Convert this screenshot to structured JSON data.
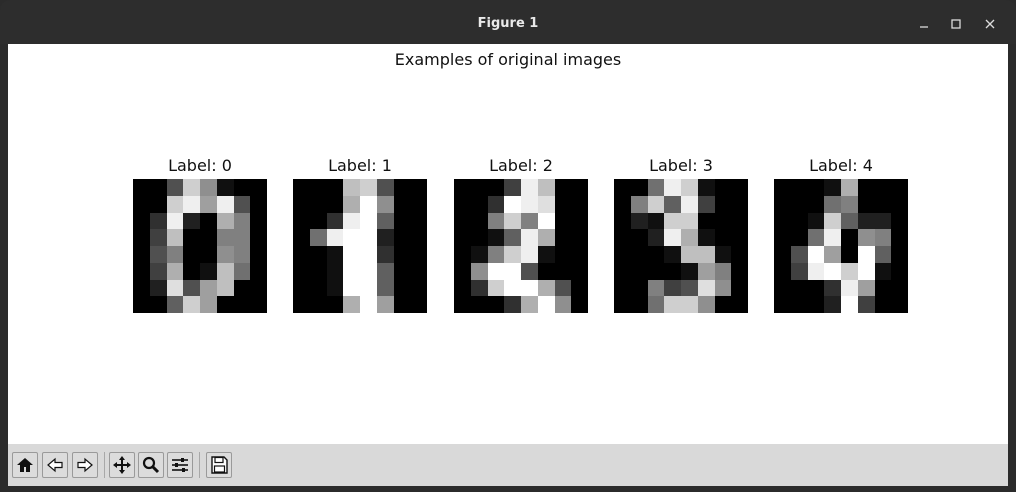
{
  "window": {
    "title": "Figure 1",
    "controls": [
      "minimize-icon",
      "maximize-icon",
      "close-icon"
    ]
  },
  "figure": {
    "suptitle": "Examples of original images",
    "panels": [
      {
        "label": "Label: 0",
        "pixels": [
          [
            0,
            0,
            5,
            13,
            9,
            1,
            0,
            0
          ],
          [
            0,
            0,
            13,
            15,
            10,
            15,
            5,
            0
          ],
          [
            0,
            3,
            15,
            2,
            0,
            11,
            8,
            0
          ],
          [
            0,
            4,
            12,
            0,
            0,
            8,
            8,
            0
          ],
          [
            0,
            5,
            8,
            0,
            0,
            9,
            8,
            0
          ],
          [
            0,
            4,
            11,
            0,
            1,
            12,
            7,
            0
          ],
          [
            0,
            2,
            14,
            5,
            10,
            12,
            0,
            0
          ],
          [
            0,
            0,
            6,
            13,
            10,
            0,
            0,
            0
          ]
        ]
      },
      {
        "label": "Label: 1",
        "pixels": [
          [
            0,
            0,
            0,
            12,
            13,
            5,
            0,
            0
          ],
          [
            0,
            0,
            0,
            11,
            16,
            9,
            0,
            0
          ],
          [
            0,
            0,
            3,
            15,
            16,
            6,
            0,
            0
          ],
          [
            0,
            7,
            15,
            16,
            16,
            2,
            0,
            0
          ],
          [
            0,
            0,
            1,
            16,
            16,
            3,
            0,
            0
          ],
          [
            0,
            0,
            1,
            16,
            16,
            6,
            0,
            0
          ],
          [
            0,
            0,
            1,
            16,
            16,
            6,
            0,
            0
          ],
          [
            0,
            0,
            0,
            11,
            16,
            10,
            0,
            0
          ]
        ]
      },
      {
        "label": "Label: 2",
        "pixels": [
          [
            0,
            0,
            0,
            4,
            15,
            12,
            0,
            0
          ],
          [
            0,
            0,
            3,
            16,
            15,
            14,
            0,
            0
          ],
          [
            0,
            0,
            8,
            13,
            8,
            16,
            0,
            0
          ],
          [
            0,
            0,
            1,
            6,
            15,
            11,
            0,
            0
          ],
          [
            0,
            1,
            8,
            13,
            15,
            1,
            0,
            0
          ],
          [
            0,
            9,
            16,
            16,
            5,
            0,
            0,
            0
          ],
          [
            0,
            3,
            13,
            16,
            16,
            11,
            5,
            0
          ],
          [
            0,
            0,
            0,
            3,
            11,
            16,
            9,
            0
          ]
        ]
      },
      {
        "label": "Label: 3",
        "pixels": [
          [
            0,
            0,
            7,
            15,
            13,
            1,
            0,
            0
          ],
          [
            0,
            8,
            13,
            6,
            15,
            4,
            0,
            0
          ],
          [
            0,
            2,
            1,
            13,
            13,
            0,
            0,
            0
          ],
          [
            0,
            0,
            2,
            15,
            11,
            1,
            0,
            0
          ],
          [
            0,
            0,
            0,
            1,
            12,
            12,
            1,
            0
          ],
          [
            0,
            0,
            0,
            0,
            1,
            10,
            8,
            0
          ],
          [
            0,
            0,
            8,
            4,
            5,
            14,
            9,
            0
          ],
          [
            0,
            0,
            7,
            13,
            13,
            9,
            0,
            0
          ]
        ]
      },
      {
        "label": "Label: 4",
        "pixels": [
          [
            0,
            0,
            0,
            1,
            11,
            0,
            0,
            0
          ],
          [
            0,
            0,
            0,
            7,
            8,
            0,
            0,
            0
          ],
          [
            0,
            0,
            1,
            13,
            6,
            2,
            2,
            0
          ],
          [
            0,
            0,
            7,
            15,
            0,
            9,
            8,
            0
          ],
          [
            0,
            5,
            16,
            10,
            0,
            16,
            6,
            0
          ],
          [
            0,
            4,
            15,
            16,
            13,
            16,
            1,
            0
          ],
          [
            0,
            0,
            0,
            3,
            15,
            10,
            0,
            0
          ],
          [
            0,
            0,
            0,
            2,
            16,
            4,
            0,
            0
          ]
        ]
      }
    ]
  },
  "toolbar": {
    "buttons": [
      {
        "name": "home-button",
        "icon": "home-icon"
      },
      {
        "name": "back-button",
        "icon": "back-arrow-icon"
      },
      {
        "name": "forward-button",
        "icon": "forward-arrow-icon"
      },
      {
        "name": "pan-button",
        "icon": "move-arrows-icon"
      },
      {
        "name": "zoom-button",
        "icon": "magnifier-icon"
      },
      {
        "name": "configure-subplots-button",
        "icon": "sliders-icon"
      },
      {
        "name": "save-button",
        "icon": "floppy-disk-icon"
      }
    ]
  },
  "colors": {
    "titlebar": "#2d2d2d",
    "canvas": "#ffffff",
    "toolbar": "#d9d9d9"
  }
}
